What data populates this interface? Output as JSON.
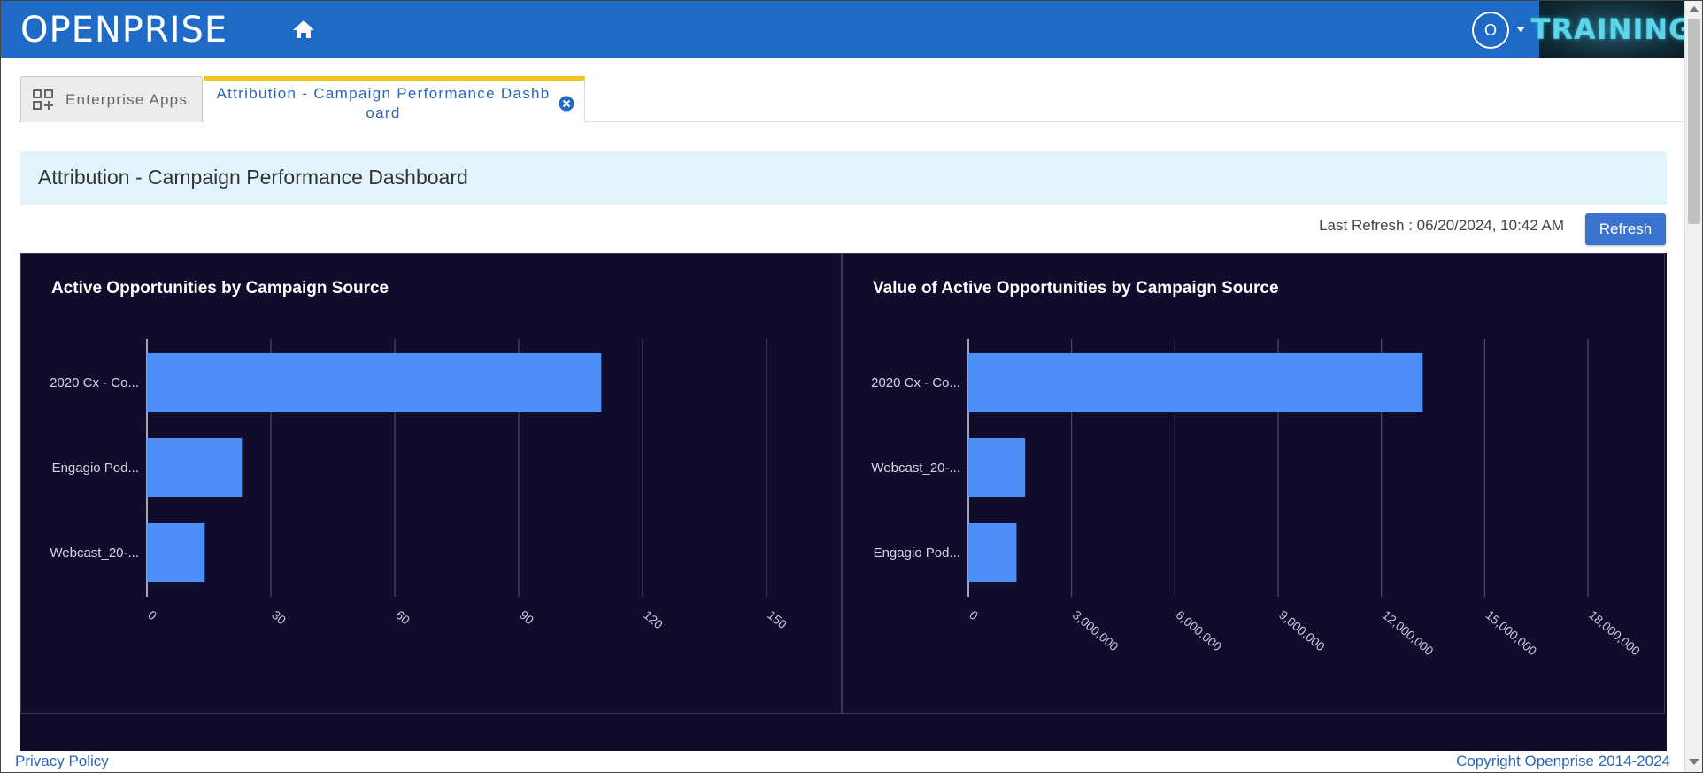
{
  "header": {
    "logo": "OPENPRISE",
    "avatar_initial": "O",
    "badge": "TRAINING",
    "icons": [
      "home-icon",
      "chevron-down-icon"
    ]
  },
  "tabs": [
    {
      "label": "Enterprise Apps",
      "icon": "apps-icon"
    },
    {
      "label": "Attribution - Campaign Performance Dashboard",
      "icon": "close-icon",
      "active_color": "#f7c21e"
    }
  ],
  "page": {
    "title": "Attribution - Campaign Performance Dashboard",
    "last_refresh": "Last Refresh : 06/20/2024, 10:42 AM",
    "refresh_label": "Refresh"
  },
  "colors": {
    "brand": "#1f6ac6",
    "dashboard_bg": "#110c2c",
    "bar": "#4b8ff7",
    "link": "#2a66b8"
  },
  "chart_data": [
    {
      "type": "bar",
      "orientation": "horizontal",
      "title": "Active Opportunities by Campaign Source",
      "categories": [
        "2020 Cx - Co...",
        "Engagio Pod...",
        "Webcast_20-..."
      ],
      "values": [
        110,
        23,
        14
      ],
      "xticks": [
        "0",
        "30",
        "60",
        "90",
        "120",
        "150"
      ],
      "xlim": [
        0,
        150
      ],
      "grid": true
    },
    {
      "type": "bar",
      "orientation": "horizontal",
      "title": "Value of Active Opportunities by Campaign Source",
      "categories": [
        "2020 Cx - Co...",
        "Webcast_20-...",
        "Engagio Pod..."
      ],
      "values": [
        13200000,
        1650000,
        1400000
      ],
      "xticks": [
        "0",
        "3,000,000",
        "6,000,000",
        "9,000,000",
        "12,000,000",
        "15,000,000",
        "18,000,000"
      ],
      "xlim": [
        0,
        18000000
      ],
      "grid": true
    }
  ],
  "footer": {
    "privacy": "Privacy Policy",
    "copyright": "Copyright Openprise 2014-2024"
  }
}
